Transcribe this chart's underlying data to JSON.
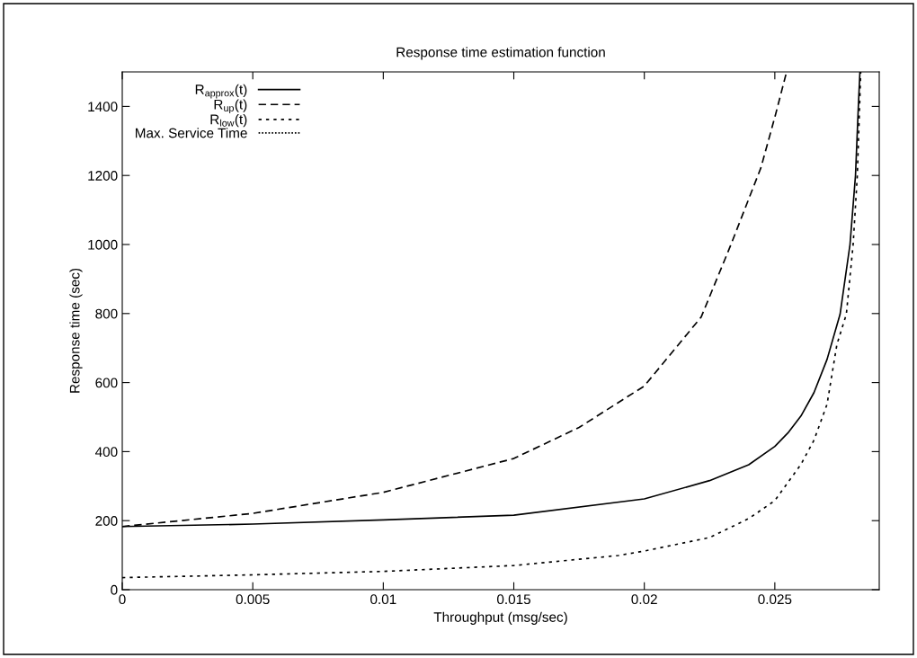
{
  "chart_data": {
    "type": "line",
    "title": "Response time estimation function",
    "xlabel": "Throughput (msg/sec)",
    "ylabel": "Response time (sec)",
    "xlim": [
      0,
      0.029
    ],
    "ylim": [
      0,
      1500
    ],
    "xticks": [
      0,
      0.005,
      0.01,
      0.015,
      0.02,
      0.025
    ],
    "yticks": [
      0,
      200,
      400,
      600,
      800,
      1000,
      1200,
      1400
    ],
    "grid": false,
    "legend": "top left",
    "marker": "none",
    "series": [
      {
        "name": "R$_{approx}$(t)",
        "color": "#000000",
        "line_style": "solid",
        "x": [
          0,
          0.005,
          0.01,
          0.015,
          0.02,
          0.0225,
          0.024,
          0.025,
          0.0255,
          0.026,
          0.0265,
          0.027,
          0.0275,
          0.02788,
          0.02809,
          0.0282,
          0.02826
        ],
        "values": [
          183,
          190,
          202,
          216,
          263,
          316,
          362,
          415,
          454,
          503,
          571,
          667,
          798,
          1000,
          1200,
          1400,
          1500
        ]
      },
      {
        "name": "R$_{up}$(t)",
        "color": "#000000",
        "line_style": "dashed",
        "x": [
          0,
          0.005,
          0.01,
          0.015,
          0.0175,
          0.02,
          0.02218,
          0.02331,
          0.02447,
          0.02504,
          0.02545
        ],
        "values": [
          183,
          221,
          282,
          380,
          470,
          590,
          790,
          998,
          1223,
          1380,
          1500
        ]
      },
      {
        "name": "R$_{low}$(t)",
        "color": "#000000",
        "line_style": "dotted",
        "x": [
          0,
          0.005,
          0.01,
          0.015,
          0.019,
          0.02,
          0.0225,
          0.024,
          0.025,
          0.026,
          0.0265,
          0.027,
          0.02738,
          0.02774,
          0.028,
          0.02816,
          0.02829
        ],
        "values": [
          35,
          43,
          53,
          70,
          99,
          112,
          151,
          206,
          258,
          363,
          433,
          537,
          711,
          798,
          1000,
          1200,
          1500
        ]
      },
      {
        "name": "Max. Service Time",
        "color": "#000000",
        "line_style": "finedotted"
      }
    ]
  }
}
